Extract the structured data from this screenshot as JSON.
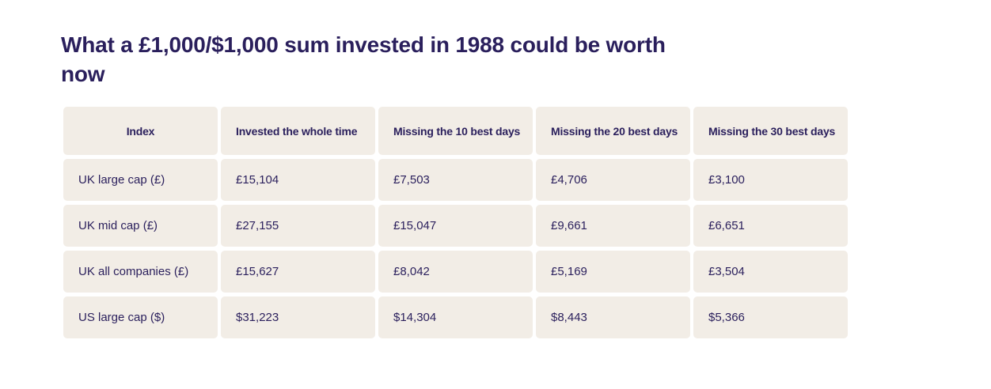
{
  "title": "What a £1,000/$1,000 sum invested in 1988 could be worth now",
  "table": {
    "headers": [
      "Index",
      "Invested the whole time",
      "Missing the 10 best days",
      "Missing the 20 best days",
      "Missing the 30 best days"
    ],
    "rows": [
      [
        "UK large cap (£)",
        "£15,104",
        "£7,503",
        "£4,706",
        "£3,100"
      ],
      [
        "UK mid cap (£)",
        "£27,155",
        "£15,047",
        "£9,661",
        "£6,651"
      ],
      [
        "UK all companies (£)",
        "£15,627",
        "£8,042",
        "£5,169",
        "£3,504"
      ],
      [
        "US large cap ($)",
        "$31,223",
        "$14,304",
        "$8,443",
        "$5,366"
      ]
    ]
  },
  "colors": {
    "text": "#2a1f5c",
    "cell_background": "#f2ede6",
    "page_background": "#ffffff"
  }
}
